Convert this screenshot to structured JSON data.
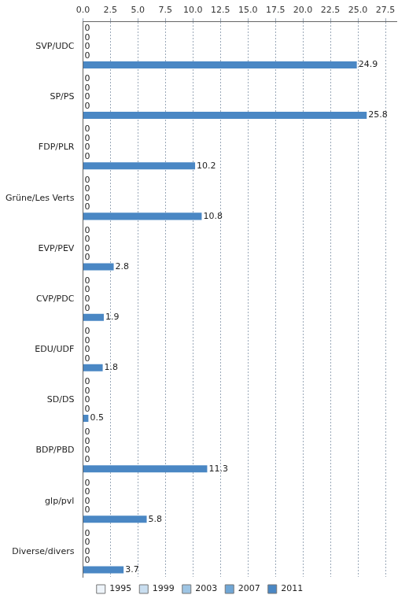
{
  "chart_data": {
    "type": "bar",
    "orientation": "horizontal",
    "categories": [
      "SVP/UDC",
      "SP/PS",
      "FDP/PLR",
      "Grüne/Les Verts",
      "EVP/PEV",
      "CVP/PDC",
      "EDU/UDF",
      "SD/DS",
      "BDP/PBD",
      "glp/pvl",
      "Diverse/divers"
    ],
    "series": [
      {
        "name": "1995",
        "color": "#eef4fa",
        "values": [
          0,
          0,
          0,
          0,
          0,
          0,
          0,
          0,
          0,
          0,
          0
        ]
      },
      {
        "name": "1999",
        "color": "#c9def0",
        "values": [
          0,
          0,
          0,
          0,
          0,
          0,
          0,
          0,
          0,
          0,
          0
        ]
      },
      {
        "name": "2003",
        "color": "#9ec5e4",
        "values": [
          0,
          0,
          0,
          0,
          0,
          0,
          0,
          0,
          0,
          0,
          0
        ]
      },
      {
        "name": "2007",
        "color": "#6fa6d5",
        "values": [
          0,
          0,
          0,
          0,
          0,
          0,
          0,
          0,
          0,
          0,
          0
        ]
      },
      {
        "name": "2011",
        "color": "#4a87c4",
        "values": [
          24.9,
          25.8,
          10.2,
          10.8,
          2.8,
          1.9,
          1.8,
          0.5,
          11.3,
          5.8,
          3.7
        ]
      }
    ],
    "xlim": [
      0,
      28.5
    ],
    "xticks": [
      {
        "value": 0,
        "label": "0.0"
      },
      2.5,
      {
        "value": 5,
        "label": "5.0"
      },
      7.5,
      {
        "value": 10,
        "label": "10.0"
      },
      12.5,
      {
        "value": 15,
        "label": "15.0"
      },
      17.5,
      {
        "value": 20,
        "label": "20.0"
      },
      22.5,
      {
        "value": 25,
        "label": "25.0"
      },
      27.5
    ],
    "grid": true,
    "legend": "bottom",
    "data_labels": true
  }
}
